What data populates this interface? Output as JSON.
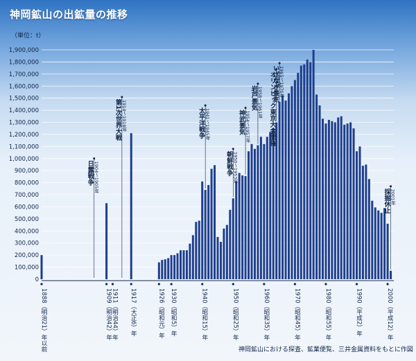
{
  "chart_data": {
    "type": "bar",
    "title": "神岡鉱山の出鉱量の推移",
    "ylabel": "（単位：t）",
    "source": "神岡鉱山における探査、鉱業便覧、三井金属資料をもとに作図",
    "ylim": [
      0,
      1900000
    ],
    "yticks": [
      0,
      100000,
      200000,
      300000,
      400000,
      500000,
      600000,
      700000,
      800000,
      900000,
      1000000,
      1100000,
      1200000,
      1300000,
      1400000,
      1500000,
      1600000,
      1700000,
      1800000,
      1900000
    ],
    "ytick_labels": [
      "0",
      "100,000",
      "200,000",
      "300,000",
      "400,000",
      "500,000",
      "600,000",
      "700,000",
      "800,000",
      "900,000",
      "1,000,000",
      "1,100,000",
      "1,200,000",
      "1,300,000",
      "1,400,000",
      "1,500,000",
      "1,600,000",
      "1,700,000",
      "1,800,000",
      "1,900,000"
    ],
    "bar_color": "#1f3f8c",
    "x": [
      1888,
      1909,
      1917,
      1926,
      1927,
      1928,
      1929,
      1930,
      1931,
      1932,
      1933,
      1934,
      1935,
      1936,
      1937,
      1938,
      1939,
      1940,
      1941,
      1942,
      1943,
      1944,
      1945,
      1946,
      1947,
      1948,
      1949,
      1950,
      1951,
      1952,
      1953,
      1954,
      1955,
      1956,
      1957,
      1958,
      1959,
      1960,
      1961,
      1962,
      1963,
      1964,
      1965,
      1966,
      1967,
      1968,
      1969,
      1970,
      1971,
      1972,
      1973,
      1974,
      1975,
      1976,
      1977,
      1978,
      1979,
      1980,
      1981,
      1982,
      1983,
      1984,
      1985,
      1986,
      1987,
      1988,
      1989,
      1990,
      1991,
      1992,
      1993,
      1994,
      1995,
      1996,
      1997,
      1998,
      1999,
      2000,
      2001
    ],
    "values": [
      200000,
      630000,
      1210000,
      140000,
      160000,
      165000,
      175000,
      200000,
      200000,
      215000,
      240000,
      240000,
      240000,
      295000,
      365000,
      475000,
      485000,
      810000,
      740000,
      780000,
      915000,
      945000,
      350000,
      310000,
      420000,
      450000,
      575000,
      670000,
      810000,
      880000,
      860000,
      855000,
      1060000,
      1120000,
      1080000,
      1110000,
      1180000,
      1120000,
      1180000,
      1220000,
      1250000,
      1300000,
      1470000,
      1520000,
      1480000,
      1540000,
      1600000,
      1650000,
      1710000,
      1770000,
      1780000,
      1820000,
      1800000,
      1900000,
      1530000,
      1440000,
      1330000,
      1290000,
      1320000,
      1310000,
      1300000,
      1340000,
      1350000,
      1280000,
      1290000,
      1300000,
      1250000,
      1060000,
      1100000,
      940000,
      950000,
      830000,
      650000,
      595000,
      570000,
      550000,
      590000,
      460000,
      70000
    ],
    "x_labels": [
      {
        "year": 1888,
        "text": "1888（明治21）年以前"
      },
      {
        "year": 1909,
        "text": "1909（明治42）年"
      },
      {
        "year": 1911,
        "text": "1911（明治44）年"
      },
      {
        "year": 1917,
        "text": "1917（大正6）年"
      },
      {
        "year": 1926,
        "text": "1926（昭和元）年"
      },
      {
        "year": 1930,
        "text": "1930（昭和5）年"
      },
      {
        "year": 1940,
        "text": "1940（昭和15）年"
      },
      {
        "year": 1950,
        "text": "1950（昭和25）年"
      },
      {
        "year": 1960,
        "text": "1960（昭和35）年"
      },
      {
        "year": 1970,
        "text": "1970（昭和45）年"
      },
      {
        "year": 1980,
        "text": "1980（昭和55）年"
      },
      {
        "year": 1990,
        "text": "1990（平成2）年"
      },
      {
        "year": 2000,
        "text": "2000（平成12）年"
      }
    ],
    "annotations": [
      {
        "year": 1905,
        "date": "1904～1905年",
        "label": "日露戦争",
        "top": 1000000
      },
      {
        "year": 1914,
        "date": "1914～1918年",
        "label": "第1次世界大戦",
        "top": 1510000
      },
      {
        "year": 1941,
        "date": "1941～1945年",
        "label": "太平洋戦争",
        "top": 1440000
      },
      {
        "year": 1950,
        "date": "1950～1953年",
        "label": "朝鮮戦争",
        "top": 1080000
      },
      {
        "year": 1954,
        "date": "1954～1957年",
        "label": "神武景気",
        "top": 1420000
      },
      {
        "year": 1958,
        "date": "1958～1961年",
        "label": "岩戸景気",
        "top": 1620000
      },
      {
        "year": 1964,
        "date": "1964年",
        "label": "オリンピック東京大会開催",
        "top": 1740000
      },
      {
        "year": 1965,
        "date": "1965～1970年",
        "label": "いざなぎ景気",
        "top": 1790000
      },
      {
        "year": 2001,
        "date": "2001年",
        "label": "採掘休止",
        "top": 770000
      }
    ]
  }
}
